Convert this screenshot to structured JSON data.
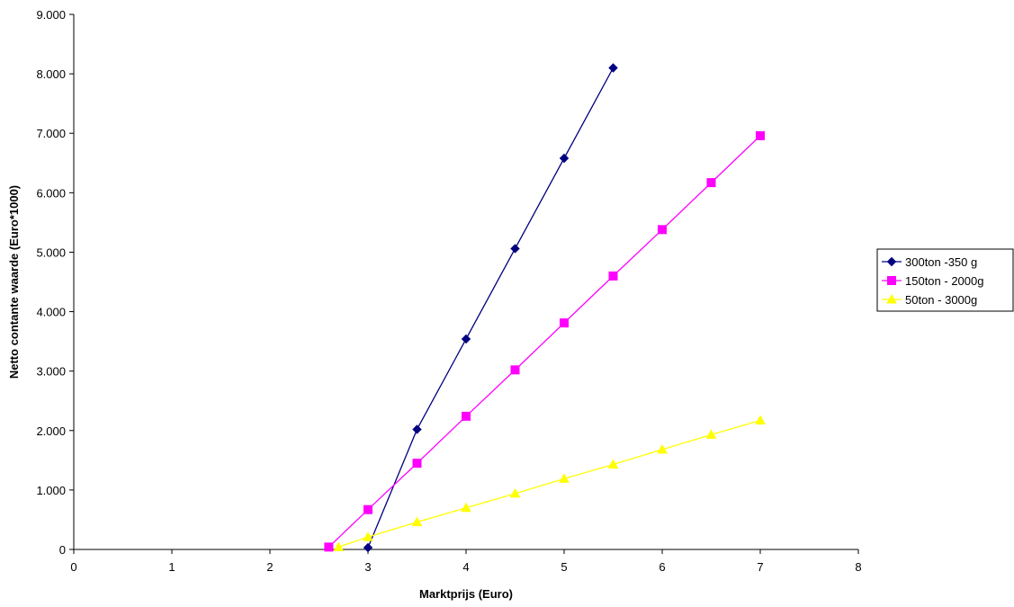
{
  "chart_data": {
    "type": "line",
    "xlabel": "Marktprijs (Euro)",
    "ylabel": "Netto contante waarde (Euro*1000)",
    "xlim": [
      0,
      8
    ],
    "ylim": [
      0,
      9000
    ],
    "x_ticks": [
      0,
      1,
      2,
      3,
      4,
      5,
      6,
      7,
      8
    ],
    "y_ticks": [
      0,
      1000,
      2000,
      3000,
      4000,
      5000,
      6000,
      7000,
      8000,
      9000
    ],
    "y_tick_labels": [
      "0",
      "1.000",
      "2.000",
      "3.000",
      "4.000",
      "5.000",
      "6.000",
      "7.000",
      "8.000",
      "9.000"
    ],
    "grid": false,
    "legend_position": "right",
    "series": [
      {
        "name": "300ton -350 g",
        "color": "#000080",
        "marker": "diamond",
        "x": [
          3,
          3.5,
          4,
          4.5,
          5,
          5.5
        ],
        "y": [
          30,
          2020,
          3540,
          5060,
          6580,
          8100
        ]
      },
      {
        "name": "150ton - 2000g",
        "color": "#FF00FF",
        "marker": "square",
        "x": [
          2.6,
          3,
          3.5,
          4,
          4.5,
          5,
          5.5,
          6,
          6.5,
          7
        ],
        "y": [
          40,
          670,
          1450,
          2240,
          3020,
          3810,
          4600,
          5380,
          6170,
          6960
        ]
      },
      {
        "name": "50ton - 3000g",
        "color": "#FFFF00",
        "marker": "triangle",
        "x": [
          2.7,
          3,
          3.5,
          4,
          4.5,
          5,
          5.5,
          6,
          6.5,
          7
        ],
        "y": [
          40,
          210,
          460,
          700,
          940,
          1190,
          1430,
          1680,
          1930,
          2170
        ]
      }
    ]
  }
}
